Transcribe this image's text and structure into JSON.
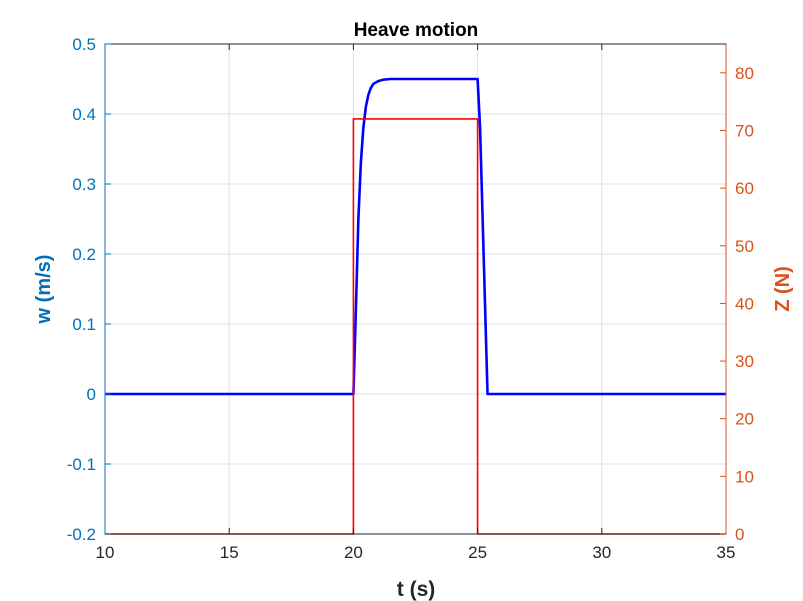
{
  "chart_data": {
    "type": "line",
    "title": "Heave motion",
    "xlabel": "t (s)",
    "xlim": [
      10,
      35
    ],
    "x_ticks": [
      10,
      15,
      20,
      25,
      30,
      35
    ],
    "y_left": {
      "label": "w (m/s)",
      "lim": [
        -0.2,
        0.5
      ],
      "ticks": [
        -0.2,
        -0.1,
        0,
        0.1,
        0.2,
        0.3,
        0.4,
        0.5
      ],
      "color": "#0072BD"
    },
    "y_right": {
      "label": "Z (N)",
      "lim": [
        0,
        85
      ],
      "ticks": [
        0,
        10,
        20,
        30,
        40,
        50,
        60,
        70,
        80
      ],
      "color": "#D95319"
    },
    "grid": true,
    "series": [
      {
        "axis": "left",
        "color": "#0000FF",
        "x": [
          10,
          20.0,
          20.1,
          20.2,
          20.3,
          20.4,
          20.5,
          20.6,
          20.7,
          20.8,
          21.0,
          21.2,
          21.5,
          22.0,
          22.5,
          23.0,
          24.0,
          25.0,
          25.1,
          25.4,
          35
        ],
        "y": [
          0,
          0,
          0.12,
          0.25,
          0.33,
          0.38,
          0.41,
          0.427,
          0.437,
          0.443,
          0.447,
          0.449,
          0.45,
          0.45,
          0.45,
          0.45,
          0.45,
          0.45,
          0.38,
          0,
          0
        ]
      },
      {
        "axis": "right",
        "color": "#FF0000",
        "x": [
          10,
          20.0,
          20.0,
          25.0,
          25.0,
          35
        ],
        "y": [
          0,
          0,
          72,
          72,
          0,
          0
        ]
      }
    ]
  }
}
